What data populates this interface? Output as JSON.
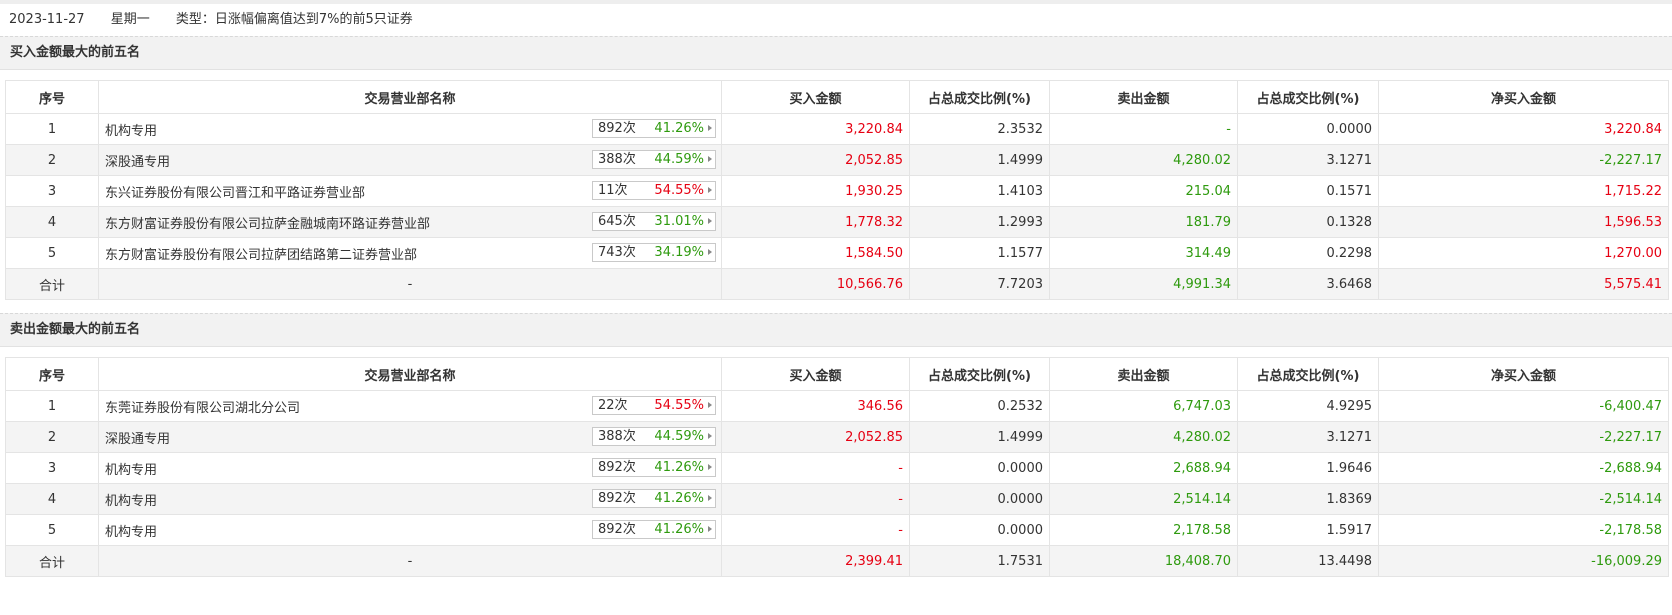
{
  "header": {
    "date": "2023-11-27",
    "weekday": "星期一",
    "type_text": "类型：日涨幅偏离值达到7%的前5只证券"
  },
  "columns": [
    "序号",
    "交易营业部名称",
    "买入金额",
    "占总成交比例(%)",
    "卖出金额",
    "占总成交比例(%)",
    "净买入金额"
  ],
  "buy_section": {
    "title": "买入金额最大的前五名",
    "rows": [
      {
        "idx": "1",
        "name": "机构专用",
        "times": "892次",
        "rate": "41.26%",
        "rate_color": "green",
        "buy": "3,220.84",
        "buy_pct": "2.3532",
        "sell": "-",
        "sell_pct": "0.0000",
        "net": "3,220.84",
        "net_color": "red"
      },
      {
        "idx": "2",
        "name": "深股通专用",
        "times": "388次",
        "rate": "44.59%",
        "rate_color": "green",
        "buy": "2,052.85",
        "buy_pct": "1.4999",
        "sell": "4,280.02",
        "sell_pct": "3.1271",
        "net": "-2,227.17",
        "net_color": "green"
      },
      {
        "idx": "3",
        "name": "东兴证券股份有限公司晋江和平路证券营业部",
        "times": "11次",
        "rate": "54.55%",
        "rate_color": "red",
        "buy": "1,930.25",
        "buy_pct": "1.4103",
        "sell": "215.04",
        "sell_pct": "0.1571",
        "net": "1,715.22",
        "net_color": "red"
      },
      {
        "idx": "4",
        "name": "东方财富证券股份有限公司拉萨金融城南环路证券营业部",
        "times": "645次",
        "rate": "31.01%",
        "rate_color": "green",
        "buy": "1,778.32",
        "buy_pct": "1.2993",
        "sell": "181.79",
        "sell_pct": "0.1328",
        "net": "1,596.53",
        "net_color": "red"
      },
      {
        "idx": "5",
        "name": "东方财富证券股份有限公司拉萨团结路第二证券营业部",
        "times": "743次",
        "rate": "34.19%",
        "rate_color": "green",
        "buy": "1,584.50",
        "buy_pct": "1.1577",
        "sell": "314.49",
        "sell_pct": "0.2298",
        "net": "1,270.00",
        "net_color": "red"
      }
    ],
    "total": {
      "label": "合计",
      "name": "-",
      "buy": "10,566.76",
      "buy_pct": "7.7203",
      "sell": "4,991.34",
      "sell_pct": "3.6468",
      "net": "5,575.41",
      "net_color": "red"
    }
  },
  "sell_section": {
    "title": "卖出金额最大的前五名",
    "rows": [
      {
        "idx": "1",
        "name": "东莞证券股份有限公司湖北分公司",
        "times": "22次",
        "rate": "54.55%",
        "rate_color": "red",
        "buy": "346.56",
        "buy_pct": "0.2532",
        "sell": "6,747.03",
        "sell_pct": "4.9295",
        "net": "-6,400.47",
        "net_color": "green"
      },
      {
        "idx": "2",
        "name": "深股通专用",
        "times": "388次",
        "rate": "44.59%",
        "rate_color": "green",
        "buy": "2,052.85",
        "buy_pct": "1.4999",
        "sell": "4,280.02",
        "sell_pct": "3.1271",
        "net": "-2,227.17",
        "net_color": "green"
      },
      {
        "idx": "3",
        "name": "机构专用",
        "times": "892次",
        "rate": "41.26%",
        "rate_color": "green",
        "buy": "-",
        "buy_pct": "0.0000",
        "sell": "2,688.94",
        "sell_pct": "1.9646",
        "net": "-2,688.94",
        "net_color": "green"
      },
      {
        "idx": "4",
        "name": "机构专用",
        "times": "892次",
        "rate": "41.26%",
        "rate_color": "green",
        "buy": "-",
        "buy_pct": "0.0000",
        "sell": "2,514.14",
        "sell_pct": "1.8369",
        "net": "-2,514.14",
        "net_color": "green"
      },
      {
        "idx": "5",
        "name": "机构专用",
        "times": "892次",
        "rate": "41.26%",
        "rate_color": "green",
        "buy": "-",
        "buy_pct": "0.0000",
        "sell": "2,178.58",
        "sell_pct": "1.5917",
        "net": "-2,178.58",
        "net_color": "green"
      }
    ],
    "total": {
      "label": "合计",
      "name": "-",
      "buy": "2,399.41",
      "buy_pct": "1.7531",
      "sell": "18,408.70",
      "sell_pct": "13.4498",
      "net": "-16,009.29",
      "net_color": "green"
    }
  },
  "colors": {
    "red": "#e60012",
    "green": "#2e9a0e"
  }
}
